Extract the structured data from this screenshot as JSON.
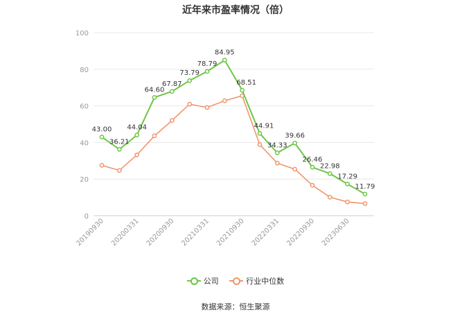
{
  "chart_data": {
    "type": "line",
    "title": "近年来市盈率情况（倍）",
    "categories": [
      "20190930",
      "",
      "20200331",
      "",
      "20200930",
      "",
      "20210331",
      "",
      "20210930",
      "",
      "20220331",
      "",
      "20220930",
      "",
      "20230630",
      ""
    ],
    "x_tick_labels": [
      "20190930",
      "20200331",
      "20200930",
      "20210331",
      "20210930",
      "20220331",
      "20220930",
      "20230630"
    ],
    "series": [
      {
        "name": "公司",
        "color": "#6cc644",
        "values": [
          43.0,
          36.21,
          44.04,
          64.6,
          67.87,
          73.79,
          78.79,
          84.95,
          68.51,
          44.91,
          34.33,
          39.66,
          26.46,
          22.98,
          17.29,
          11.79
        ]
      },
      {
        "name": "行业中位数",
        "color": "#f0956a",
        "values": [
          27.5,
          24.7,
          33.2,
          43.6,
          52.0,
          60.9,
          59.1,
          62.8,
          65.5,
          38.8,
          28.7,
          25.4,
          16.6,
          10.1,
          7.5,
          6.6
        ]
      }
    ],
    "ylim": [
      0,
      100
    ],
    "yticks": [
      0,
      20,
      40,
      60,
      80,
      100
    ],
    "grid": true,
    "legend_position": "bottom",
    "data_labels": [
      "43.00",
      "36.21",
      "44.04",
      "64.60",
      "67.87",
      "73.79",
      "78.79",
      "84.95",
      "68.51",
      "44.91",
      "34.33",
      "39.66",
      "26.46",
      "22.98",
      "17.29",
      "11.79"
    ]
  },
  "legend": {
    "company_label": "公司",
    "industry_label": "行业中位数"
  },
  "source": "数据来源：恒生聚源"
}
